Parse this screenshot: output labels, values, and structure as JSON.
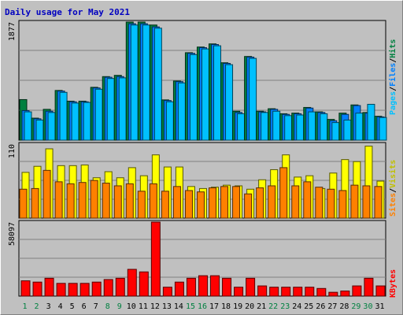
{
  "chart_data": {
    "type": "bar",
    "title": "Daily usage for May 2021",
    "categories": [
      "1",
      "2",
      "3",
      "4",
      "5",
      "6",
      "7",
      "8",
      "9",
      "10",
      "11",
      "12",
      "13",
      "14",
      "15",
      "16",
      "17",
      "18",
      "19",
      "20",
      "21",
      "22",
      "23",
      "24",
      "25",
      "26",
      "27",
      "28",
      "29",
      "30",
      "31"
    ],
    "weekend_days": [
      "1",
      "2",
      "8",
      "9",
      "15",
      "16",
      "22",
      "23",
      "29",
      "30"
    ],
    "panels": [
      {
        "id": "hits-files-pages",
        "ymax_label": "1877",
        "ylim": [
          0,
          1877
        ],
        "legend": [
          "Pages",
          "/",
          "Files",
          "/",
          "Hits"
        ],
        "series": [
          {
            "name": "Hits",
            "color": "#008040",
            "values": [
              645,
              350,
              490,
              790,
              620,
              620,
              840,
              1010,
              1030,
              1877,
              1877,
              1830,
              640,
              940,
              1390,
              1480,
              1530,
              1230,
              460,
              1330,
              460,
              500,
              420,
              430,
              520,
              450,
              330,
              430,
              560,
              440,
              380
            ]
          },
          {
            "name": "Files",
            "color": "#0080ff",
            "values": [
              470,
              340,
              460,
              780,
              610,
              610,
              830,
              1000,
              1010,
              1850,
              1850,
              1800,
              630,
              930,
              1380,
              1470,
              1520,
              1220,
              440,
              1320,
              450,
              490,
              410,
              420,
              510,
              440,
              310,
              410,
              550,
              430,
              370
            ]
          },
          {
            "name": "Pages",
            "color": "#00c0ff",
            "values": [
              450,
              320,
              440,
              760,
              590,
              600,
              810,
              980,
              990,
              1830,
              1830,
              1780,
              610,
              910,
              1360,
              1450,
              1500,
              1200,
              420,
              1300,
              440,
              460,
              390,
              400,
              450,
              420,
              280,
              320,
              430,
              570,
              360
            ]
          }
        ]
      },
      {
        "id": "visits-sites",
        "ymax_label": "110",
        "ylim": [
          0,
          110
        ],
        "legend": [
          "Sites",
          "/",
          "Visits"
        ],
        "series": [
          {
            "name": "Visits",
            "color": "#ffff00",
            "values": [
              68,
              77,
              103,
              78,
              78,
              79,
              60,
              69,
              60,
              75,
              63,
              94,
              76,
              76,
              47,
              44,
              46,
              49,
              48,
              43,
              57,
              72,
              94,
              61,
              63,
              44,
              67,
              87,
              84,
              107,
              55
            ]
          },
          {
            "name": "Sites",
            "color": "#ff8000",
            "values": [
              43,
              44,
              71,
              54,
              51,
              53,
              56,
              52,
              48,
              51,
              40,
              51,
              40,
              47,
              41,
              39,
              45,
              47,
              47,
              36,
              45,
              48,
              75,
              48,
              54,
              46,
              43,
              41,
              49,
              48,
              47
            ]
          }
        ]
      },
      {
        "id": "kbytes",
        "ymax_label": "58097",
        "ylim": [
          0,
          58097
        ],
        "legend": [
          "KBytes"
        ],
        "series": [
          {
            "name": "KBytes",
            "color": "#ff0000",
            "values": [
              12000,
              11000,
              14000,
              10000,
              10000,
              10000,
              11000,
              13000,
              14000,
              21000,
              19000,
              58097,
              7000,
              11000,
              14000,
              16000,
              16000,
              14000,
              7000,
              14000,
              8000,
              7000,
              7000,
              7000,
              7000,
              6000,
              3000,
              4000,
              8000,
              14000,
              8000
            ]
          }
        ]
      }
    ]
  }
}
